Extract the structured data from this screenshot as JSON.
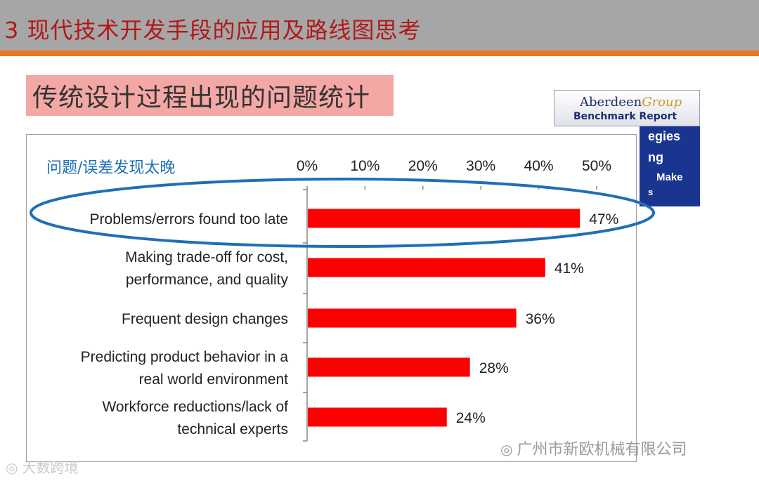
{
  "header": {
    "title": "3  现代技术开发手段的应用及路线图思考"
  },
  "subtitle": "传统设计过程出现的问题统计",
  "aberdeen": {
    "name_part1": "Aberdeen",
    "name_part2": "Group",
    "report": "Benchmark Report",
    "cover_fragments": [
      "egies",
      "ng",
      "Make",
      "s"
    ]
  },
  "chart_data": {
    "type": "bar",
    "orientation": "horizontal",
    "title": "问题/误差发现太晚",
    "categories": [
      [
        "Problems/errors found too  late"
      ],
      [
        "Making trade-off for cost,",
        "performance, and quality"
      ],
      [
        "Frequent design changes"
      ],
      [
        "Predicting product behavior in a",
        "real world environment"
      ],
      [
        "Workforce reductions/lack of",
        "technical experts"
      ]
    ],
    "values": [
      47,
      41,
      36,
      28,
      24
    ],
    "value_labels": [
      "47%",
      "41%",
      "36%",
      "28%",
      "24%"
    ],
    "xlim": [
      0,
      50
    ],
    "xticks": [
      "0%",
      "10%",
      "20%",
      "30%",
      "40%",
      "50%"
    ],
    "bar_color": "#ff0000",
    "highlight_color": "#1f6fb5",
    "highlighted_category": "Problems/errors found too  late",
    "legend": "none",
    "grid": false
  },
  "watermarks": {
    "left": "大数跨境",
    "right": "广州市新欧机械有限公司"
  }
}
